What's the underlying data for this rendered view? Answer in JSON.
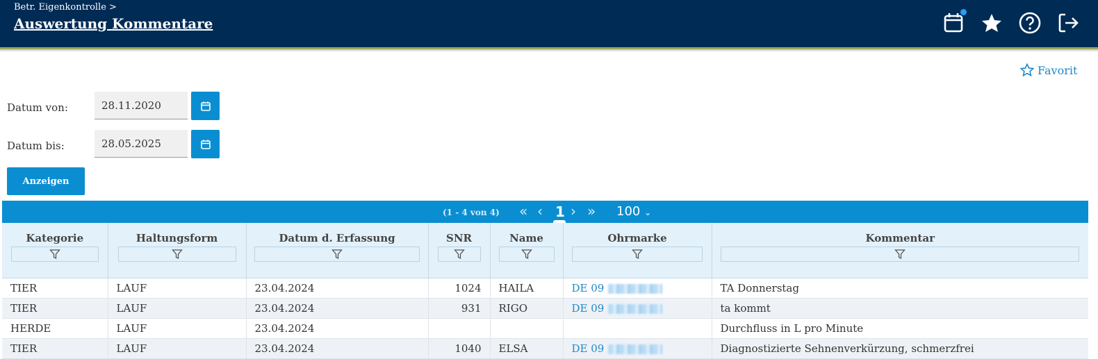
{
  "header": {
    "breadcrumb": "Betr. Eigenkontrolle >",
    "title": "Auswertung Kommentare",
    "icons": [
      "calendar-icon",
      "star-icon",
      "help-icon",
      "logout-icon"
    ],
    "background": "#002b55"
  },
  "favorite": {
    "label": "Favorit"
  },
  "filters": {
    "date_from_label": "Datum von:",
    "date_from_value": "28.11.2020",
    "date_to_label": "Datum bis:",
    "date_to_value": "28.05.2025",
    "show_button": "Anzeigen"
  },
  "pager": {
    "count": "(1 - 4 von 4)",
    "current_page": "1",
    "page_size": "100"
  },
  "table": {
    "columns": [
      "Kategorie",
      "Haltungsform",
      "Datum d. Erfassung",
      "SNR",
      "Name",
      "Ohrmarke",
      "Kommentar"
    ],
    "rows": [
      {
        "kategorie": "TIER",
        "haltungsform": "LAUF",
        "datum": "23.04.2024",
        "snr": "1024",
        "name": "HAILA",
        "ohrmarke": "DE 09",
        "kommentar": "TA Donnerstag"
      },
      {
        "kategorie": "TIER",
        "haltungsform": "LAUF",
        "datum": "23.04.2024",
        "snr": "931",
        "name": "RIGO",
        "ohrmarke": "DE 09",
        "kommentar": "ta kommt"
      },
      {
        "kategorie": "HERDE",
        "haltungsform": "LAUF",
        "datum": "23.04.2024",
        "snr": "",
        "name": "",
        "ohrmarke": "",
        "kommentar": "Durchfluss in L pro Minute"
      },
      {
        "kategorie": "TIER",
        "haltungsform": "LAUF",
        "datum": "23.04.2024",
        "snr": "1040",
        "name": "ELSA",
        "ohrmarke": "DE 09",
        "kommentar": "Diagnostizierte Sehnenverkürzung, schmerzfrei"
      }
    ]
  },
  "colors": {
    "accent": "#0a8ed1",
    "link": "#1e88c8",
    "header_bg": "#e3f1fa"
  }
}
